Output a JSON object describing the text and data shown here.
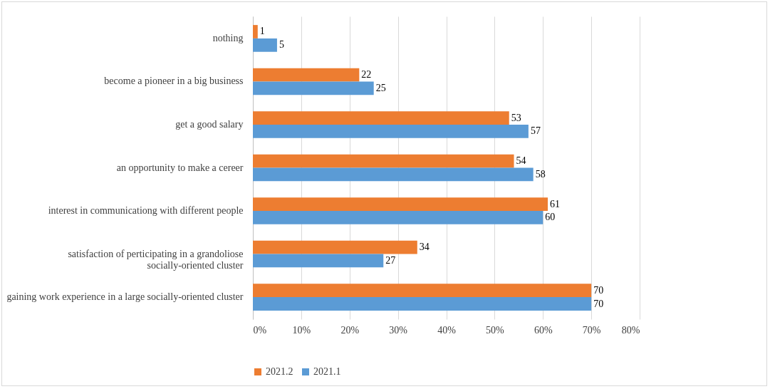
{
  "chart_data": {
    "type": "bar",
    "orientation": "horizontal",
    "categories": [
      "nothing",
      "become a pioneer in a big business",
      "get a good salary",
      "an opportunity to make a cereer",
      "interest in communicationg with different people",
      "satisfaction of perticipating in a grandoliose socially-oriented cluster",
      "gaining work experience in a large socially-oriented cluster"
    ],
    "series": [
      {
        "name": "2021.2",
        "color": "#ed7d31",
        "values": [
          1,
          22,
          53,
          54,
          61,
          34,
          70
        ]
      },
      {
        "name": "2021.1",
        "color": "#5b9bd5",
        "values": [
          5,
          25,
          57,
          58,
          60,
          27,
          70
        ]
      }
    ],
    "xlim": [
      0,
      80
    ],
    "xticks": [
      {
        "value": 0,
        "label": "0%"
      },
      {
        "value": 10,
        "label": "10%"
      },
      {
        "value": 20,
        "label": "20%"
      },
      {
        "value": 30,
        "label": "30%"
      },
      {
        "value": 40,
        "label": "40%"
      },
      {
        "value": 50,
        "label": "50%"
      },
      {
        "value": 60,
        "label": "60%"
      },
      {
        "value": 70,
        "label": "70%"
      },
      {
        "value": 80,
        "label": "80%"
      }
    ],
    "data_labels": true,
    "grid": "x",
    "legend": "bottom"
  }
}
